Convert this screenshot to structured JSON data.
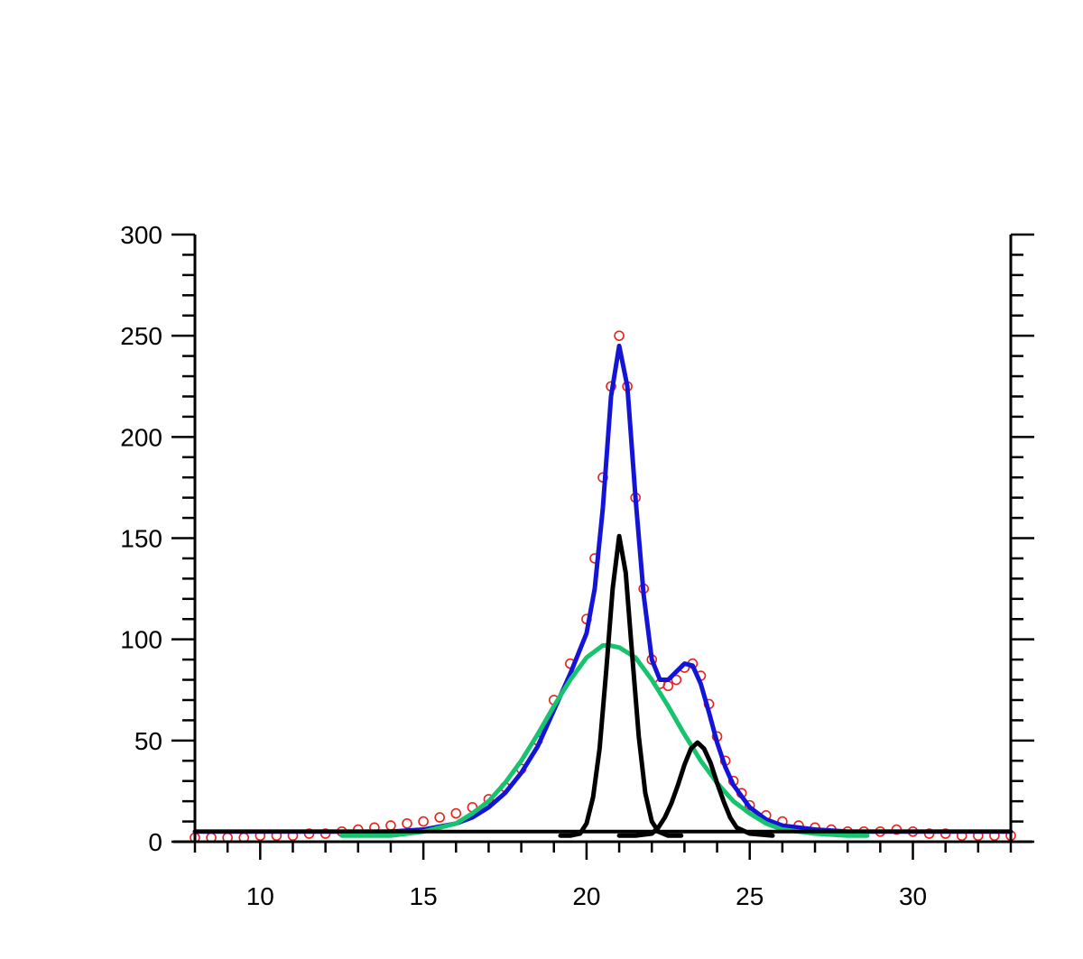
{
  "chart_data": {
    "type": "line",
    "title": "",
    "xlabel": "",
    "ylabel": "",
    "xlim": [
      8,
      33
    ],
    "ylim": [
      0,
      300
    ],
    "x_ticks": [
      10,
      15,
      20,
      25,
      30
    ],
    "x_tick_labels": [
      "10",
      "15",
      "20",
      "25",
      "30"
    ],
    "y_ticks": [
      0,
      50,
      100,
      150,
      200,
      250,
      300
    ],
    "y_tick_labels": [
      "0",
      "50",
      "100",
      "150",
      "200",
      "250",
      "300"
    ],
    "grid": false,
    "legend": "none",
    "colors": {
      "measured": "#e8231c",
      "fit_total": "#1414d8",
      "broad_component": "#17c46e",
      "narrow_components": "#000000",
      "baseline": "#000000",
      "axes": "#000000"
    },
    "series": [
      {
        "kind": "markers",
        "color_key": "measured",
        "x": [
          8,
          8.5,
          9,
          9.5,
          10,
          10.5,
          11,
          11.5,
          12,
          12.5,
          13,
          13.5,
          14,
          14.5,
          15,
          15.5,
          16,
          16.5,
          17,
          17.5,
          18,
          18.5,
          19,
          19.5,
          20,
          20.25,
          20.5,
          20.75,
          21,
          21.25,
          21.5,
          21.75,
          22,
          22.25,
          22.5,
          22.75,
          23,
          23.25,
          23.5,
          23.75,
          24,
          24.25,
          24.5,
          24.75,
          25,
          25.5,
          26,
          26.5,
          27,
          27.5,
          28,
          28.5,
          29,
          29.5,
          30,
          30.5,
          31,
          31.5,
          32,
          32.5,
          33
        ],
        "y": [
          2,
          2,
          2,
          2,
          3,
          3,
          3,
          4,
          4,
          5,
          6,
          7,
          8,
          9,
          10,
          12,
          14,
          17,
          21,
          27,
          36,
          50,
          70,
          88,
          110,
          140,
          180,
          225,
          250,
          225,
          170,
          125,
          90,
          78,
          77,
          80,
          86,
          88,
          82,
          68,
          52,
          40,
          30,
          24,
          18,
          13,
          10,
          8,
          7,
          6,
          5,
          5,
          5,
          6,
          5,
          4,
          4,
          3,
          3,
          3,
          3
        ]
      },
      {
        "kind": "line",
        "color_key": "fit_total",
        "x": [
          8,
          9,
          10,
          11,
          12,
          13,
          14,
          15,
          16,
          16.5,
          17,
          17.5,
          18,
          18.5,
          19,
          19.5,
          20,
          20.25,
          20.5,
          20.75,
          21,
          21.25,
          21.5,
          21.75,
          22,
          22.25,
          22.5,
          22.75,
          23,
          23.25,
          23.5,
          23.75,
          24,
          24.25,
          24.5,
          25,
          25.5,
          26,
          27,
          28,
          29,
          30,
          31,
          32,
          33
        ],
        "y": [
          5,
          5,
          5,
          5,
          5,
          5,
          5,
          6,
          9,
          12,
          17,
          24,
          34,
          47,
          65,
          83,
          103,
          125,
          165,
          220,
          245,
          225,
          170,
          122,
          90,
          80,
          80,
          84,
          88,
          87,
          78,
          64,
          49,
          37,
          28,
          17,
          11,
          8,
          6,
          5,
          5,
          5,
          5,
          5,
          5
        ]
      },
      {
        "kind": "line",
        "color_key": "broad_component",
        "x": [
          12.5,
          13,
          14,
          15,
          16,
          16.5,
          17,
          17.5,
          18,
          18.5,
          19,
          19.5,
          20,
          20.5,
          20.7,
          21,
          21.5,
          22,
          22.5,
          23,
          23.5,
          24,
          24.5,
          25,
          25.5,
          26,
          27,
          28,
          28.6
        ],
        "y": [
          3,
          3,
          3,
          5,
          9,
          14,
          20,
          29,
          40,
          53,
          67,
          80,
          91,
          97,
          97,
          96,
          91,
          80,
          67,
          53,
          40,
          29,
          20,
          14,
          9,
          6,
          4,
          3,
          3
        ]
      },
      {
        "kind": "line",
        "color_key": "narrow_components",
        "x": [
          19.2,
          19.5,
          19.8,
          20,
          20.2,
          20.4,
          20.6,
          20.8,
          21,
          21.2,
          21.4,
          21.6,
          21.8,
          22,
          22.2,
          22.5,
          22.9
        ],
        "y": [
          3,
          3,
          4,
          9,
          22,
          46,
          84,
          125,
          151,
          133,
          92,
          52,
          24,
          10,
          5,
          3,
          3
        ]
      },
      {
        "kind": "line",
        "color_key": "narrow_components",
        "x": [
          21,
          21.5,
          22,
          22.2,
          22.4,
          22.6,
          22.8,
          23,
          23.2,
          23.4,
          23.6,
          23.8,
          24,
          24.2,
          24.4,
          24.6,
          25,
          25.7
        ],
        "y": [
          3,
          3,
          4,
          7,
          12,
          19,
          28,
          38,
          46,
          49,
          46,
          39,
          29,
          20,
          12,
          7,
          4,
          3
        ]
      },
      {
        "kind": "line",
        "color_key": "baseline",
        "x": [
          8,
          33
        ],
        "y": [
          5,
          5
        ]
      }
    ]
  }
}
